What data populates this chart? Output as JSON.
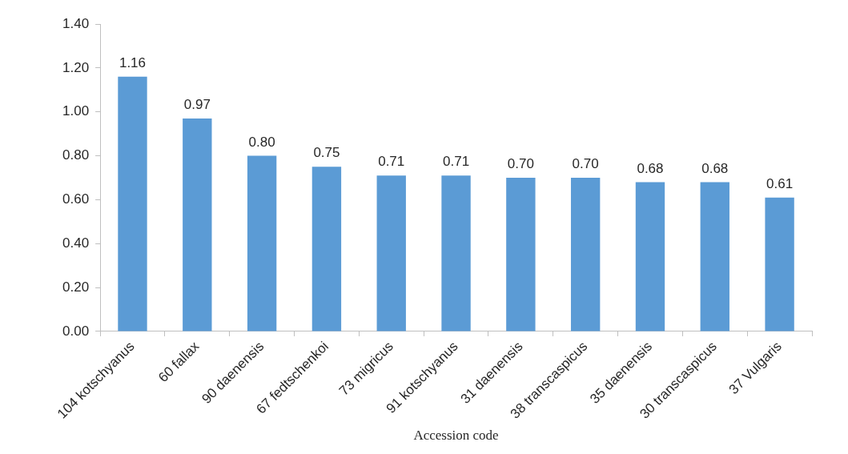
{
  "chart_data": {
    "type": "bar",
    "xlabel": "Accession code",
    "categories": [
      "104 kotschyanus",
      "60 fallax",
      "90 daenensis",
      "67 fedtschenkoi",
      "73 migricus",
      "91 kotschyanus",
      "31 daenensis",
      "38 transcaspicus",
      "35 daenensis",
      "30 transcaspicus",
      "37 Vulgaris"
    ],
    "values": [
      1.16,
      0.97,
      0.8,
      0.75,
      0.71,
      0.71,
      0.7,
      0.7,
      0.68,
      0.68,
      0.61
    ],
    "value_labels": [
      "1.16",
      "0.97",
      "0.80",
      "0.75",
      "0.71",
      "0.71",
      "0.70",
      "0.70",
      "0.68",
      "0.68",
      "0.61"
    ],
    "color": "#5b9bd5",
    "ylim": [
      0,
      1.4
    ],
    "yticks": [
      {
        "value": 0,
        "label": "0.00"
      },
      {
        "value": 0.2,
        "label": "0.20"
      },
      {
        "value": 0.4,
        "label": "0.40"
      },
      {
        "value": 0.6,
        "label": "0.60"
      },
      {
        "value": 0.8,
        "label": "0.80"
      },
      {
        "value": 1,
        "label": "1.00"
      },
      {
        "value": 1.2,
        "label": "1.20"
      },
      {
        "value": 1.4,
        "label": "1.40"
      }
    ],
    "grid": false,
    "legend": false
  }
}
